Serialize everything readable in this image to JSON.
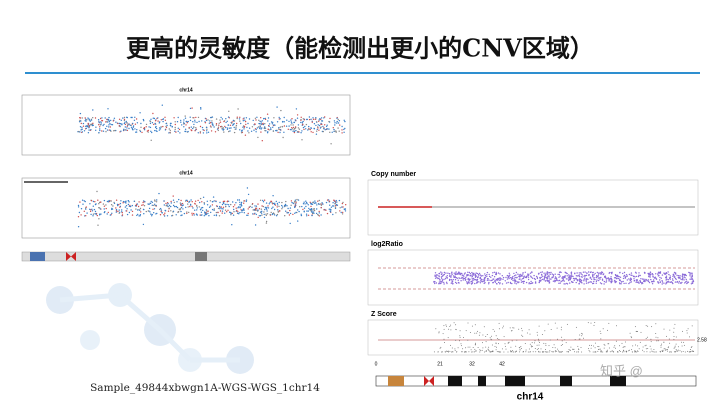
{
  "header": {
    "title": "更高的灵敏度（能检测出更小的CNV区域）"
  },
  "left_figure": {
    "top_panel_title": "chr14",
    "bottom_panel_title": "chr14",
    "caption": "Sample_49844xbwgn1A-WGS-WGS_1chr14"
  },
  "right_figure": {
    "panels": [
      "Copy number",
      "log2Ratio",
      "Z Score"
    ],
    "threshold_label": "2.58",
    "position_labels": [
      "0",
      "21",
      "32",
      "42"
    ],
    "chromosome": "chr14"
  },
  "watermark": "知乎 @"
}
